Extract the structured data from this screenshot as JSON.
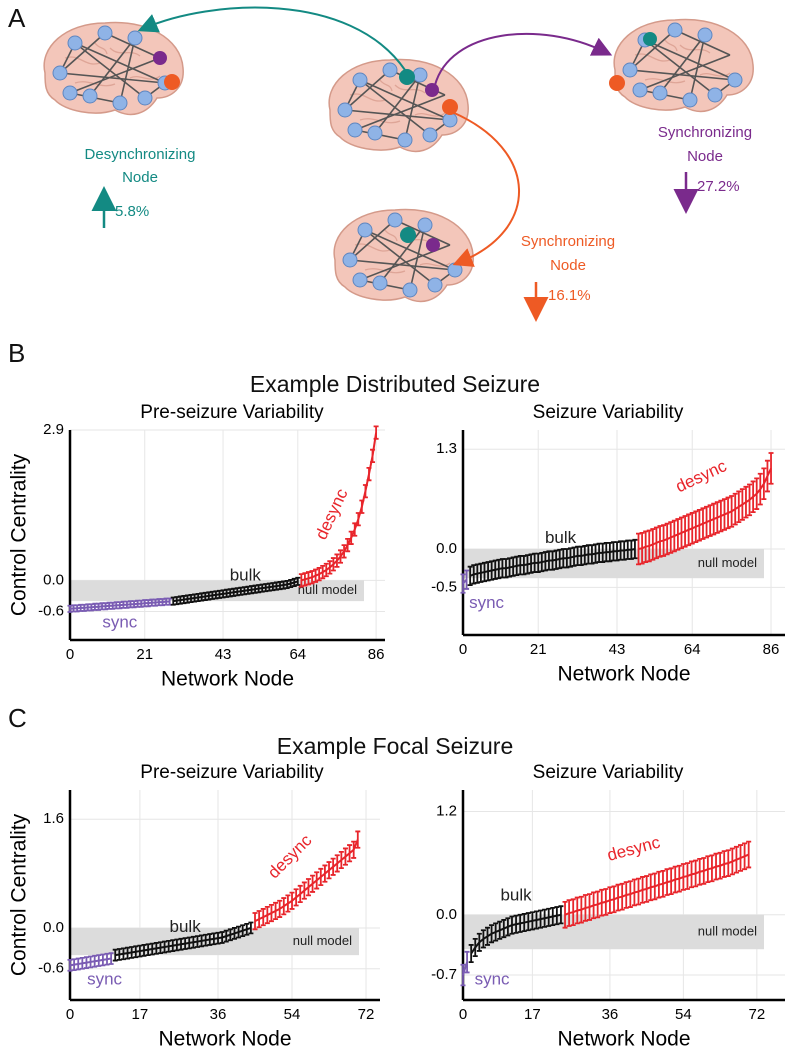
{
  "panel_a": {
    "label": "A",
    "annotations": [
      {
        "lines": [
          "Desynchronizing",
          "Node"
        ],
        "change": "5.8%"
      },
      {
        "lines": [
          "Synchronizing",
          "Node"
        ],
        "change": "27.2%"
      },
      {
        "lines": [
          "Synchronizing",
          "Node"
        ],
        "change": "16.1%"
      }
    ]
  },
  "panel_b": {
    "label": "B",
    "title": "Example Distributed Seizure"
  },
  "panel_c": {
    "label": "C",
    "title": "Example Focal Seizure"
  },
  "chart_data": [
    {
      "type": "errorbar",
      "title": "Pre-seizure Variability",
      "x_label": "Network Node",
      "y_label": "Control Centrality",
      "xlim": [
        0,
        88.5
      ],
      "ylim": [
        -1.15,
        2.9
      ],
      "xticks": [
        0,
        21,
        43,
        64,
        86
      ],
      "yticks": [
        -0.6,
        {
          "value": 0,
          "label": "0.0"
        },
        2.9
      ],
      "grid": true,
      "null_model": {
        "label": "null model",
        "range": [
          -0.4,
          0
        ]
      },
      "series": [
        {
          "name": "sync",
          "color": "#7a5cb3",
          "error": 0.06,
          "x": [
            0,
            1,
            2,
            3,
            4,
            5,
            6,
            7,
            8,
            9,
            10,
            11,
            12,
            13,
            14,
            15,
            16,
            17,
            18,
            19,
            20,
            21,
            22,
            23,
            24,
            25,
            26,
            27,
            28
          ],
          "values": [
            -0.55,
            -0.54,
            -0.54,
            -0.53,
            -0.53,
            -0.52,
            -0.52,
            -0.51,
            -0.51,
            -0.5,
            -0.5,
            -0.49,
            -0.49,
            -0.48,
            -0.48,
            -0.47,
            -0.47,
            -0.46,
            -0.46,
            -0.45,
            -0.45,
            -0.44,
            -0.44,
            -0.43,
            -0.43,
            -0.42,
            -0.42,
            -0.41,
            -0.41
          ]
        },
        {
          "name": "bulk",
          "color": "#111111",
          "error": 0.07,
          "x": [
            29,
            30,
            31,
            32,
            33,
            34,
            35,
            36,
            37,
            38,
            39,
            40,
            41,
            42,
            43,
            44,
            45,
            46,
            47,
            48,
            49,
            50,
            51,
            52,
            53,
            54,
            55,
            56,
            57,
            58,
            59,
            60,
            61,
            62,
            63,
            64
          ],
          "values": [
            -0.4,
            -0.39,
            -0.38,
            -0.37,
            -0.36,
            -0.35,
            -0.34,
            -0.33,
            -0.32,
            -0.31,
            -0.3,
            -0.29,
            -0.28,
            -0.27,
            -0.26,
            -0.25,
            -0.24,
            -0.23,
            -0.22,
            -0.21,
            -0.2,
            -0.19,
            -0.18,
            -0.17,
            -0.16,
            -0.15,
            -0.14,
            -0.13,
            -0.12,
            -0.11,
            -0.1,
            -0.09,
            -0.08,
            -0.06,
            -0.04,
            -0.02
          ]
        },
        {
          "name": "desync",
          "color": "#e8252b",
          "error": 0.12,
          "x": [
            65,
            66,
            67,
            68,
            69,
            70,
            71,
            72,
            73,
            74,
            75,
            76,
            77,
            78,
            79,
            80,
            81,
            82,
            83,
            84,
            85,
            86
          ],
          "values": [
            0,
            0.02,
            0.04,
            0.06,
            0.09,
            0.12,
            0.16,
            0.2,
            0.25,
            0.31,
            0.38,
            0.46,
            0.56,
            0.68,
            0.82,
            0.98,
            1.18,
            1.42,
            1.72,
            2.05,
            2.4,
            2.85
          ]
        }
      ]
    },
    {
      "type": "errorbar",
      "title": "Seizure Variability",
      "x_label": "Network Node",
      "xlim": [
        0,
        89.9
      ],
      "ylim": [
        -1.12,
        1.55
      ],
      "xticks": [
        0,
        21,
        43,
        64,
        86
      ],
      "yticks": [
        -0.5,
        {
          "value": 0,
          "label": "0.0"
        },
        1.3
      ],
      "grid": true,
      "null_model": {
        "label": "null model",
        "range": [
          -0.38,
          0
        ]
      },
      "series": [
        {
          "name": "sync",
          "color": "#7a5cb3",
          "error": 0.12,
          "x": [
            0,
            1
          ],
          "values": [
            -0.45,
            -0.4
          ]
        },
        {
          "name": "bulk",
          "color": "#111111",
          "error": 0.12,
          "x": [
            2,
            3,
            4,
            5,
            6,
            7,
            8,
            9,
            10,
            11,
            12,
            13,
            14,
            15,
            16,
            17,
            18,
            19,
            20,
            21,
            22,
            23,
            24,
            25,
            26,
            27,
            28,
            29,
            30,
            31,
            32,
            33,
            34,
            35,
            36,
            37,
            38,
            39,
            40,
            41,
            42,
            43,
            44,
            45,
            46,
            47,
            48
          ],
          "values": [
            -0.35,
            -0.33,
            -0.32,
            -0.31,
            -0.3,
            -0.29,
            -0.28,
            -0.27,
            -0.26,
            -0.25,
            -0.25,
            -0.24,
            -0.23,
            -0.22,
            -0.21,
            -0.21,
            -0.2,
            -0.19,
            -0.18,
            -0.18,
            -0.17,
            -0.16,
            -0.15,
            -0.15,
            -0.14,
            -0.13,
            -0.12,
            -0.12,
            -0.11,
            -0.1,
            -0.09,
            -0.09,
            -0.08,
            -0.07,
            -0.07,
            -0.06,
            -0.05,
            -0.05,
            -0.04,
            -0.04,
            -0.03,
            -0.03,
            -0.02,
            -0.02,
            -0.01,
            -0.01,
            0
          ]
        },
        {
          "name": "desync",
          "color": "#e8252b",
          "error": 0.2,
          "x": [
            49,
            50,
            51,
            52,
            53,
            54,
            55,
            56,
            57,
            58,
            59,
            60,
            61,
            62,
            63,
            64,
            65,
            66,
            67,
            68,
            69,
            70,
            71,
            72,
            73,
            74,
            75,
            76,
            77,
            78,
            79,
            80,
            81,
            82,
            83,
            84,
            85,
            86
          ],
          "values": [
            0,
            0.01,
            0.03,
            0.04,
            0.06,
            0.08,
            0.1,
            0.11,
            0.13,
            0.15,
            0.17,
            0.19,
            0.21,
            0.23,
            0.25,
            0.27,
            0.29,
            0.31,
            0.33,
            0.35,
            0.37,
            0.39,
            0.41,
            0.43,
            0.45,
            0.47,
            0.49,
            0.52,
            0.55,
            0.58,
            0.61,
            0.64,
            0.68,
            0.72,
            0.78,
            0.85,
            0.95,
            1.05
          ]
        }
      ]
    },
    {
      "type": "errorbar",
      "title": "Pre-seizure Variability",
      "x_label": "Network Node",
      "y_label": "Control Centrality",
      "xlim": [
        0,
        75.4
      ],
      "ylim": [
        -1.06,
        2.03
      ],
      "xticks": [
        0,
        17,
        36,
        54,
        72
      ],
      "yticks": [
        -0.6,
        {
          "value": 0,
          "label": "0.0"
        },
        1.6
      ],
      "grid": true,
      "null_model": {
        "label": "null model",
        "range": [
          -0.4,
          0
        ]
      },
      "series": [
        {
          "name": "sync",
          "color": "#7a5cb3",
          "error": 0.08,
          "x": [
            0,
            1,
            2,
            3,
            4,
            5,
            6,
            7,
            8,
            9,
            10
          ],
          "values": [
            -0.55,
            -0.54,
            -0.53,
            -0.52,
            -0.51,
            -0.5,
            -0.49,
            -0.48,
            -0.47,
            -0.46,
            -0.45
          ]
        },
        {
          "name": "bulk",
          "color": "#111111",
          "error": 0.08,
          "x": [
            11,
            12,
            13,
            14,
            15,
            16,
            17,
            18,
            19,
            20,
            21,
            22,
            23,
            24,
            25,
            26,
            27,
            28,
            29,
            30,
            31,
            32,
            33,
            34,
            35,
            36,
            37,
            38,
            39,
            40,
            41,
            42,
            43,
            44
          ],
          "values": [
            -0.4,
            -0.39,
            -0.38,
            -0.37,
            -0.36,
            -0.35,
            -0.34,
            -0.33,
            -0.32,
            -0.31,
            -0.3,
            -0.29,
            -0.28,
            -0.27,
            -0.26,
            -0.25,
            -0.24,
            -0.23,
            -0.22,
            -0.21,
            -0.2,
            -0.19,
            -0.18,
            -0.17,
            -0.16,
            -0.15,
            -0.14,
            -0.12,
            -0.1,
            -0.08,
            -0.06,
            -0.04,
            -0.02,
            0
          ]
        },
        {
          "name": "desync",
          "color": "#e8252b",
          "error": 0.12,
          "x": [
            45,
            46,
            47,
            48,
            49,
            50,
            51,
            52,
            53,
            54,
            55,
            56,
            57,
            58,
            59,
            60,
            61,
            62,
            63,
            64,
            65,
            66,
            67,
            68,
            69,
            70
          ],
          "values": [
            0.1,
            0.13,
            0.16,
            0.19,
            0.22,
            0.25,
            0.28,
            0.32,
            0.36,
            0.4,
            0.45,
            0.5,
            0.55,
            0.6,
            0.65,
            0.7,
            0.75,
            0.8,
            0.85,
            0.9,
            0.95,
            1,
            1.05,
            1.1,
            1.15,
            1.3
          ]
        }
      ]
    },
    {
      "type": "errorbar",
      "title": "Seizure Variability",
      "x_label": "Network Node",
      "xlim": [
        0,
        78.9
      ],
      "ylim": [
        -0.99,
        1.45
      ],
      "xticks": [
        0,
        17,
        36,
        54,
        72
      ],
      "yticks": [
        -0.7,
        {
          "value": 0,
          "label": "0.0"
        },
        1.2
      ],
      "grid": true,
      "null_model": {
        "label": "null model",
        "range": [
          -0.4,
          0
        ]
      },
      "series": [
        {
          "name": "sync",
          "color": "#7a5cb3",
          "error": 0.12,
          "x": [
            0,
            1
          ],
          "values": [
            -0.7,
            -0.55
          ]
        },
        {
          "name": "bulk",
          "color": "#111111",
          "error": 0.1,
          "x": [
            2,
            3,
            4,
            5,
            6,
            7,
            8,
            9,
            10,
            11,
            12,
            13,
            14,
            15,
            16,
            17,
            18,
            19,
            20,
            21,
            22,
            23,
            24
          ],
          "values": [
            -0.45,
            -0.38,
            -0.32,
            -0.28,
            -0.25,
            -0.22,
            -0.2,
            -0.18,
            -0.16,
            -0.14,
            -0.12,
            -0.11,
            -0.1,
            -0.09,
            -0.08,
            -0.07,
            -0.06,
            -0.05,
            -0.04,
            -0.03,
            -0.02,
            -0.01,
            0
          ]
        },
        {
          "name": "desync",
          "color": "#e8252b",
          "error": 0.15,
          "x": [
            25,
            26,
            27,
            28,
            29,
            30,
            31,
            32,
            33,
            34,
            35,
            36,
            37,
            38,
            39,
            40,
            41,
            42,
            43,
            44,
            45,
            46,
            47,
            48,
            49,
            50,
            51,
            52,
            53,
            54,
            55,
            56,
            57,
            58,
            59,
            60,
            61,
            62,
            63,
            64,
            65,
            66,
            67,
            68,
            69,
            70
          ],
          "values": [
            0,
            0.02,
            0.03,
            0.05,
            0.06,
            0.08,
            0.09,
            0.11,
            0.12,
            0.14,
            0.15,
            0.17,
            0.18,
            0.2,
            0.21,
            0.23,
            0.24,
            0.26,
            0.27,
            0.29,
            0.3,
            0.32,
            0.33,
            0.35,
            0.36,
            0.38,
            0.39,
            0.41,
            0.42,
            0.44,
            0.45,
            0.47,
            0.48,
            0.5,
            0.51,
            0.53,
            0.54,
            0.56,
            0.57,
            0.59,
            0.6,
            0.62,
            0.64,
            0.66,
            0.68,
            0.7
          ]
        }
      ]
    }
  ]
}
